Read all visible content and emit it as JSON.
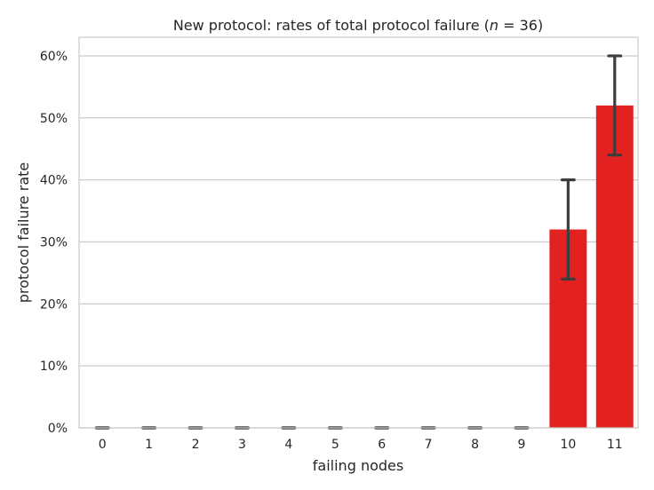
{
  "chart_data": {
    "type": "bar",
    "title": "New protocol: rates of total protocol failure (",
    "title_n_symbol": "n",
    "title_n_value": " = 36)",
    "xlabel": "failing nodes",
    "ylabel": "protocol failure rate",
    "categories": [
      "0",
      "1",
      "2",
      "3",
      "4",
      "5",
      "6",
      "7",
      "8",
      "9",
      "10",
      "11"
    ],
    "values": [
      0,
      0,
      0,
      0,
      0,
      0,
      0,
      0,
      0,
      0,
      0.32,
      0.52
    ],
    "error_bars": [
      [
        0,
        0
      ],
      [
        0,
        0
      ],
      [
        0,
        0
      ],
      [
        0,
        0
      ],
      [
        0,
        0
      ],
      [
        0,
        0
      ],
      [
        0,
        0
      ],
      [
        0,
        0
      ],
      [
        0,
        0
      ],
      [
        0,
        0
      ],
      [
        0.24,
        0.4
      ],
      [
        0.44,
        0.6
      ]
    ],
    "ylim": [
      0,
      0.63
    ],
    "yticks": [
      0,
      0.1,
      0.2,
      0.3,
      0.4,
      0.5,
      0.6
    ],
    "ytick_labels": [
      "0%",
      "10%",
      "20%",
      "30%",
      "40%",
      "50%",
      "60%"
    ],
    "grid": true,
    "bar_color": "#e32121",
    "errorbar_color": "#3d3d3d",
    "grid_color": "#cccccc"
  }
}
